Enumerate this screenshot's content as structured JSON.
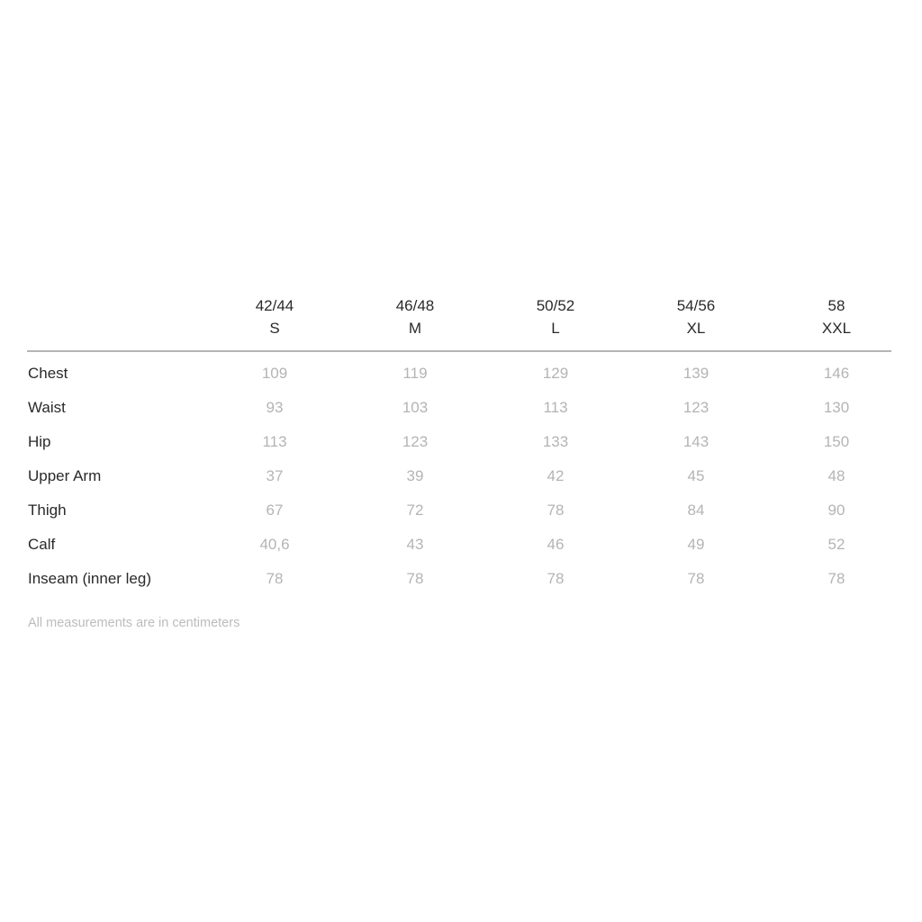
{
  "sizes": [
    {
      "eu": "42/44",
      "letter": "S"
    },
    {
      "eu": "46/48",
      "letter": "M"
    },
    {
      "eu": "50/52",
      "letter": "L"
    },
    {
      "eu": "54/56",
      "letter": "XL"
    },
    {
      "eu": "58",
      "letter": "XXL"
    }
  ],
  "rows": [
    {
      "label": "Chest",
      "values": [
        "109",
        "119",
        "129",
        "139",
        "146"
      ]
    },
    {
      "label": "Waist",
      "values": [
        "93",
        "103",
        "113",
        "123",
        "130"
      ]
    },
    {
      "label": "Hip",
      "values": [
        "113",
        "123",
        "133",
        "143",
        "150"
      ]
    },
    {
      "label": "Upper Arm",
      "values": [
        "37",
        "39",
        "42",
        "45",
        "48"
      ]
    },
    {
      "label": "Thigh",
      "values": [
        "67",
        "72",
        "78",
        "84",
        "90"
      ]
    },
    {
      "label": "Calf",
      "values": [
        "40,6",
        "43",
        "46",
        "49",
        "52"
      ]
    },
    {
      "label": "Inseam (inner leg)",
      "values": [
        "78",
        "78",
        "78",
        "78",
        "78"
      ]
    }
  ],
  "footnote": "All measurements are in centimeters",
  "colors": {
    "label": "#2a2a2a",
    "value": "#b4b4b4",
    "rule": "#b5b5b5"
  }
}
